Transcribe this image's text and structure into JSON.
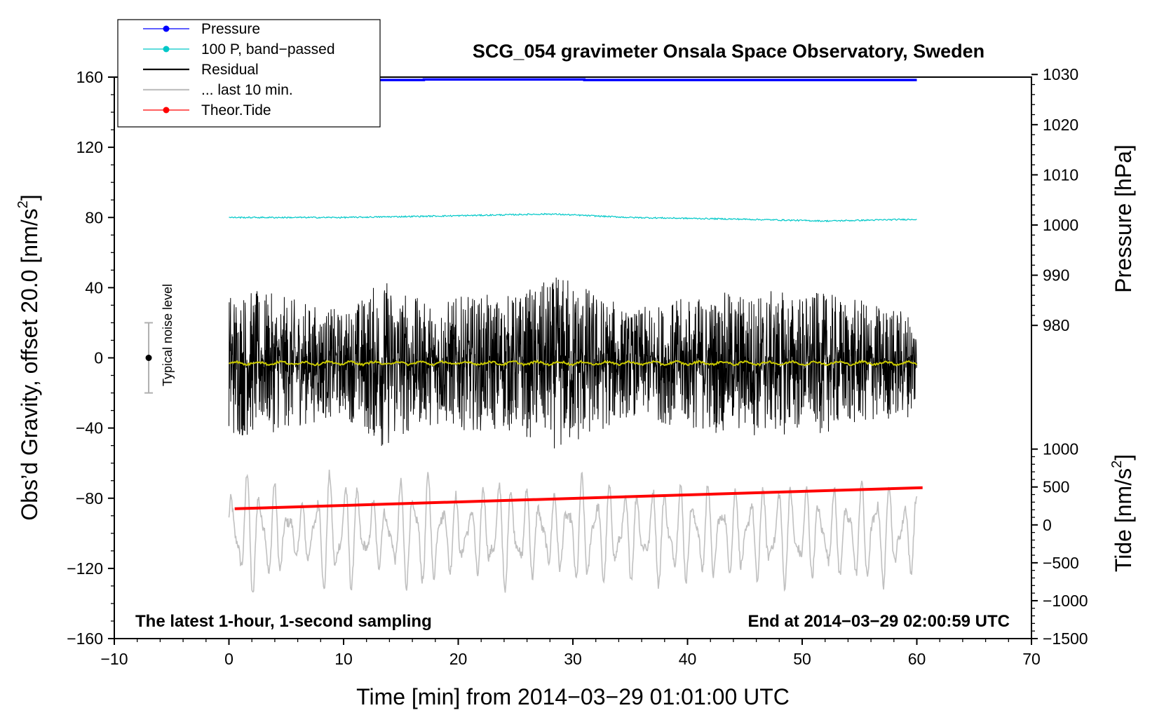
{
  "chart_data": {
    "type": "line",
    "title": "SCG_054 gravimeter Onsala Space Observatory, Sweden",
    "xlabel": "Time [min] from 2014−03−29 01:01:00 UTC",
    "ylabel_left": "Obs’d Gravity, offset 20.0 [nm/s²]",
    "ylabel_left_main": "Obs’d Gravity, offset 20.0 [nm/s",
    "ylabel_pressure": "Pressure [hPa]",
    "ylabel_tide_main": "Tide [nm/s",
    "ylabel_unit_sup": "2",
    "ylabel_unit_close": "]",
    "xlim": [
      -10,
      70
    ],
    "ylim_left": [
      -160,
      160
    ],
    "x_ticks": [
      -10,
      0,
      10,
      20,
      30,
      40,
      50,
      60,
      70
    ],
    "x_tick_labels": [
      "−10",
      "0",
      "10",
      "20",
      "30",
      "40",
      "50",
      "60",
      "70"
    ],
    "y_left_ticks": [
      -160,
      -120,
      -80,
      -40,
      0,
      40,
      80,
      120,
      160
    ],
    "y_left_tick_labels": [
      "−160",
      "−120",
      "−80",
      "−40",
      "0",
      "40",
      "80",
      "120",
      "160"
    ],
    "pressure_ticks": [
      980,
      990,
      1000,
      1010,
      1020,
      1030
    ],
    "pressure_tick_labels": [
      "980",
      "990",
      "1000",
      "1010",
      "1020",
      "1030"
    ],
    "pressure_axis_map": {
      "hpa": [
        980,
        1030
      ],
      "left_units": [
        18.5,
        161.5
      ]
    },
    "tide_ticks": [
      -1500,
      -1000,
      -500,
      0,
      500,
      1000
    ],
    "tide_tick_labels": [
      "−1500",
      "−1000",
      "−500",
      "0",
      "500",
      "1000"
    ],
    "tide_axis_map": {
      "tide": [
        -1500,
        1000
      ],
      "left_units": [
        -160,
        -52
      ]
    },
    "annotations": {
      "bottom_left": "The latest 1-hour, 1-second sampling",
      "bottom_right": "End at 2014−03−29 02:00:59 UTC",
      "noise_label": "Typical noise level",
      "noise_bar": {
        "x": -7.0,
        "center": 0,
        "half_range": 20
      }
    },
    "legend": {
      "position": "top-left",
      "entries": [
        {
          "label": "Pressure",
          "color": "#0000ff",
          "marker": "dot"
        },
        {
          "label": "100 P, band−passed",
          "color": "#00c8c8",
          "marker": "dot"
        },
        {
          "label": "Residual",
          "color": "#000000",
          "marker": "none"
        },
        {
          "label": "... last 10 min.",
          "color": "#c0c0c0",
          "marker": "none"
        },
        {
          "label": "Theor.Tide",
          "color": "#ff0000",
          "marker": "dot"
        }
      ]
    },
    "series": [
      {
        "name": "Pressure",
        "color": "#0000ff",
        "axis": "pressure_hpa",
        "x": [
          0.3,
          17.0,
          17.0,
          31.0,
          31.0,
          60.0
        ],
        "y": [
          1028.9,
          1028.9,
          1029.0,
          1029.0,
          1028.9,
          1028.9
        ]
      },
      {
        "name": "100 P, band−passed",
        "color": "#00c8c8",
        "axis": "left",
        "x": [
          0,
          10,
          20,
          28,
          35,
          45,
          52,
          60
        ],
        "y": [
          80,
          80,
          81,
          82,
          80,
          79,
          78,
          79
        ]
      },
      {
        "name": "Residual",
        "color": "#000000",
        "axis": "left",
        "x_range": [
          0,
          60
        ],
        "envelope_x": [
          0,
          5,
          10,
          13.5,
          17,
          20,
          25,
          29.5,
          35,
          40,
          45,
          52,
          60
        ],
        "envelope_amp": [
          45,
          38,
          30,
          50,
          35,
          38,
          40,
          52,
          30,
          38,
          42,
          40,
          30
        ],
        "mean": -3
      },
      {
        "name": "Residual smoothed",
        "color": "#c8c800",
        "axis": "left",
        "x": [
          0,
          10,
          20,
          30,
          40,
          50,
          60
        ],
        "y": [
          -3,
          -3,
          -3,
          -3,
          -3,
          -3,
          -3
        ]
      },
      {
        "name": "... last 10 min.",
        "color": "#c0c0c0",
        "axis": "left",
        "x_range": [
          0,
          60
        ],
        "center": -100,
        "amp_range": [
          -148,
          -58
        ]
      },
      {
        "name": "Theor.Tide",
        "color": "#ff0000",
        "axis": "left",
        "x": [
          0.5,
          60.5
        ],
        "y": [
          -86,
          -74
        ]
      }
    ]
  }
}
